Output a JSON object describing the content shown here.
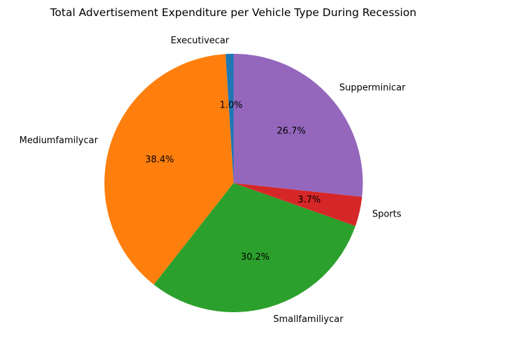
{
  "chart_data": {
    "type": "pie",
    "title": "Total Advertisement Expenditure per Vehicle Type During Recession",
    "categories": [
      "Executivecar",
      "Mediumfamilycar",
      "Smallfamiliycar",
      "Sports",
      "Supperminicar"
    ],
    "values": [
      1.0,
      38.4,
      30.2,
      3.7,
      26.7
    ],
    "percent_labels": [
      "1.0%",
      "38.4%",
      "30.2%",
      "3.7%",
      "26.7%"
    ],
    "colors": [
      "#1f77b4",
      "#ff7f0e",
      "#2ca02c",
      "#d62728",
      "#9467bd"
    ],
    "start_angle_deg": 90,
    "direction": "counterclockwise",
    "legend": "none"
  }
}
